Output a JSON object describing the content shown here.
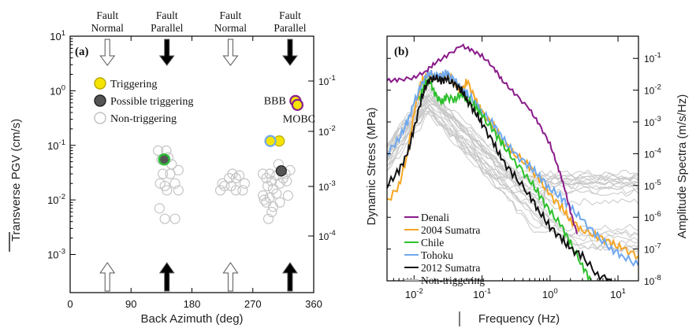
{
  "chart_data": [
    {
      "panel": "(a)",
      "type": "scatter",
      "xlabel": "Back Azimuth (deg)",
      "ylabel": "Transverse PGV (cm/s)",
      "xlim": [
        0,
        360
      ],
      "ylim": [
        0.0002,
        10
      ],
      "yscale": "log",
      "xticks": [
        "0",
        "90",
        "180",
        "270",
        "360"
      ],
      "yticks": [
        "10-3",
        "10-2",
        "10-1",
        "100",
        "101"
      ],
      "right_yticks": [
        "10-4",
        "10-3",
        "10-2",
        "10-1"
      ],
      "top_headers": [
        {
          "x": 55,
          "line1": "Fault",
          "line2": "Normal",
          "style": "open"
        },
        {
          "x": 143,
          "line1": "Fault",
          "line2": "Parallel",
          "style": "filled"
        },
        {
          "x": 237,
          "line1": "Fault",
          "line2": "Normal",
          "style": "open"
        },
        {
          "x": 325,
          "line1": "Fault",
          "line2": "Parallel",
          "style": "filled"
        }
      ],
      "legend": {
        "position": "upper-left",
        "entries": [
          {
            "label": "Triggering",
            "kind": "triggering"
          },
          {
            "label": "Possible triggering",
            "kind": "possible"
          },
          {
            "label": "Non-triggering",
            "kind": "non"
          }
        ]
      },
      "annotations": [
        "BBB",
        "MOBC"
      ],
      "series": [
        {
          "kind": "non",
          "points": [
            [
              130,
              0.08
            ],
            [
              135,
              0.055
            ],
            [
              142,
              0.08
            ],
            [
              145,
              0.06
            ],
            [
              150,
              0.045
            ],
            [
              148,
              0.03
            ],
            [
              160,
              0.035
            ],
            [
              137,
              0.03
            ],
            [
              133,
              0.02
            ],
            [
              140,
              0.018
            ],
            [
              143,
              0.015
            ],
            [
              155,
              0.02
            ],
            [
              160,
              0.015
            ],
            [
              132,
              0.007
            ],
            [
              140,
              0.0045
            ],
            [
              155,
              0.0045
            ],
            [
              225,
              0.02
            ],
            [
              222,
              0.015
            ],
            [
              228,
              0.018
            ],
            [
              235,
              0.025
            ],
            [
              240,
              0.03
            ],
            [
              245,
              0.025
            ],
            [
              250,
              0.028
            ],
            [
              238,
              0.018
            ],
            [
              258,
              0.02
            ],
            [
              245,
              0.015
            ],
            [
              255,
              0.015
            ],
            [
              285,
              0.03
            ],
            [
              290,
              0.025
            ],
            [
              295,
              0.03
            ],
            [
              292,
              0.018
            ],
            [
              298,
              0.022
            ],
            [
              305,
              0.028
            ],
            [
              300,
              0.016
            ],
            [
              285,
              0.012
            ],
            [
              290,
              0.009
            ],
            [
              295,
              0.011
            ],
            [
              300,
              0.0075
            ],
            [
              287,
              0.01
            ],
            [
              310,
              0.02
            ],
            [
              315,
              0.025
            ],
            [
              320,
              0.022
            ],
            [
              318,
              0.03
            ],
            [
              325,
              0.035
            ],
            [
              308,
              0.045
            ],
            [
              305,
              0.013
            ],
            [
              298,
              0.006
            ],
            [
              310,
              0.009
            ],
            [
              322,
              0.012
            ],
            [
              293,
              0.0045
            ]
          ]
        },
        {
          "kind": "possible",
          "color": "#555555",
          "points": [
            [
              312,
              0.034
            ]
          ]
        },
        {
          "kind": "possible-green",
          "color": "#555555",
          "ring": "#2fbe3a",
          "points": [
            [
              139,
              0.055
            ]
          ]
        },
        {
          "kind": "triggering",
          "color": "#f5e400",
          "points": [
            [
              309,
              0.12
            ]
          ]
        },
        {
          "kind": "triggering-blue",
          "color": "#f5e400",
          "ring": "#6fa8ee",
          "points": [
            [
              296,
              0.12
            ]
          ]
        },
        {
          "kind": "triggering-bbb",
          "color": "#f5e400",
          "ring": "#8a1f8a",
          "points": [
            [
              333,
              0.65
            ]
          ]
        },
        {
          "kind": "triggering-mobc",
          "color": "#f5e400",
          "ring": "#8a1f8a",
          "points": [
            [
              336,
              0.55
            ]
          ]
        }
      ]
    },
    {
      "panel": "(b)",
      "type": "line",
      "xlabel": "Frequency (Hz)",
      "ylabel": "Dynamic Stress (MPa)",
      "ylabel_right": "Amplitude Spectra (m/s/Hz)",
      "xscale": "log",
      "yscale": "log",
      "xlim": [
        0.004,
        20
      ],
      "ylim": [
        1e-08,
        0.5
      ],
      "xticks": [
        "10-2",
        "10-1",
        "100",
        "101"
      ],
      "right_yticks": [
        "10-8",
        "10-7",
        "10-6",
        "10-5",
        "10-4",
        "10-3",
        "10-2",
        "10-1"
      ],
      "legend": {
        "position": "lower-left",
        "entries": [
          "Denali",
          "2004 Sumatra",
          "Chile",
          "Tohoku",
          "2012 Sumatra",
          "Non-triggering"
        ]
      },
      "series": [
        {
          "name": "Denali",
          "color": "#8a1a8a",
          "x": [
            0.004,
            0.006,
            0.01,
            0.015,
            0.02,
            0.03,
            0.05,
            0.07,
            0.1,
            0.15,
            0.2,
            0.3,
            0.5,
            0.7,
            1.0,
            1.3,
            1.6,
            2.0,
            2.5
          ],
          "y": [
            0.02,
            0.021,
            0.025,
            0.04,
            0.07,
            0.12,
            0.25,
            0.18,
            0.12,
            0.05,
            0.02,
            0.008,
            0.0025,
            0.0008,
            0.0002,
            4e-05,
            1e-05,
            1.5e-06,
            3e-07
          ]
        },
        {
          "name": "2004 Sumatra",
          "color": "#f5a623",
          "x": [
            0.004,
            0.006,
            0.008,
            0.01,
            0.013,
            0.016,
            0.02,
            0.03,
            0.04,
            0.05,
            0.06,
            0.08,
            0.1,
            0.15,
            0.2,
            0.3,
            0.5,
            0.7,
            1.0,
            1.5,
            2.0,
            3.0,
            5.0,
            8.0,
            12.0,
            20.0
          ],
          "y": [
            3e-06,
            1e-05,
            0.0001,
            0.002,
            0.02,
            0.028,
            0.025,
            0.03,
            0.018,
            0.008,
            0.02,
            0.005,
            0.002,
            0.0007,
            0.00025,
            0.0001,
            4e-05,
            1.5e-05,
            5e-06,
            2e-06,
            8e-07,
            4e-07,
            2.5e-07,
            1.5e-07,
            1e-07,
            6e-08
          ]
        },
        {
          "name": "Chile",
          "color": "#2ec02e",
          "x": [
            0.012,
            0.014,
            0.017,
            0.02,
            0.025,
            0.03,
            0.04,
            0.05,
            0.06,
            0.08,
            0.1,
            0.15,
            0.2,
            0.3,
            0.5,
            0.7,
            1.0,
            1.5,
            2.0,
            3.0,
            4.0
          ],
          "y": [
            0.005,
            0.015,
            0.02,
            0.008,
            0.004,
            0.006,
            0.005,
            0.008,
            0.005,
            0.003,
            0.0015,
            0.0005,
            0.0002,
            6e-05,
            1.5e-05,
            5e-06,
            1.5e-06,
            5e-07,
            1.5e-07,
            3e-08,
            1e-08
          ]
        },
        {
          "name": "Tohoku",
          "color": "#6fa8ee",
          "x": [
            0.004,
            0.006,
            0.008,
            0.01,
            0.013,
            0.016,
            0.02,
            0.025,
            0.03,
            0.04,
            0.05,
            0.06,
            0.08,
            0.1,
            0.15,
            0.2,
            0.3,
            0.5,
            0.7,
            1.0,
            1.5,
            2.0,
            3.0,
            5.0,
            8.0,
            12.0,
            20.0
          ],
          "y": [
            0.0001,
            0.0003,
            0.001,
            0.004,
            0.015,
            0.035,
            0.03,
            0.028,
            0.035,
            0.02,
            0.01,
            0.008,
            0.004,
            0.002,
            0.0008,
            0.0003,
            0.0001,
            4e-05,
            2e-05,
            8e-06,
            4e-06,
            2e-06,
            8e-07,
            2.5e-07,
            1e-07,
            6e-08,
            3e-08
          ]
        },
        {
          "name": "2012 Sumatra",
          "color": "#111111",
          "x": [
            0.004,
            0.006,
            0.008,
            0.01,
            0.013,
            0.016,
            0.02,
            0.025,
            0.03,
            0.04,
            0.05,
            0.06,
            0.08,
            0.1,
            0.15,
            0.2,
            0.3,
            0.5,
            0.7,
            1.0,
            1.5,
            2.0,
            3.0,
            5.0,
            8.0
          ],
          "y": [
            1e-05,
            3e-05,
            0.0001,
            0.0006,
            0.006,
            0.02,
            0.025,
            0.02,
            0.022,
            0.015,
            0.01,
            0.005,
            0.002,
            0.0009,
            0.0002,
            6e-05,
            2e-05,
            5e-06,
            1.5e-06,
            5e-07,
            2e-07,
            1e-07,
            6e-08,
            1.5e-08,
            1e-08
          ]
        },
        {
          "name": "Non-triggering",
          "color": "#b8b8b8"
        }
      ]
    }
  ]
}
